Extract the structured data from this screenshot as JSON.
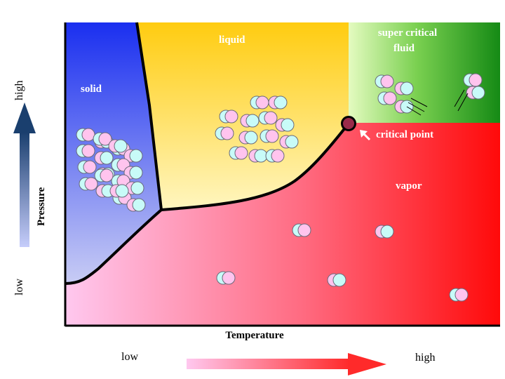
{
  "regions": {
    "solid": "solid",
    "liquid": "liquid",
    "supercritical_line1": "super critical",
    "supercritical_line2": "fluid",
    "vapor": "vapor"
  },
  "critical_point_label": "critical point",
  "x_axis": {
    "title": "Temperature",
    "low": "low",
    "high": "high"
  },
  "y_axis": {
    "title": "Pressure",
    "low": "low",
    "high": "high"
  },
  "colors": {
    "solid": "#2a3ff0",
    "liquid": "#ffd21a",
    "supercritical": "#1f8a1f",
    "vapor": "#ff1a1a",
    "molecule_pink": "#ffc4ee",
    "molecule_cyan": "#c8fbf8",
    "critical_point": "#9a2a4a"
  }
}
